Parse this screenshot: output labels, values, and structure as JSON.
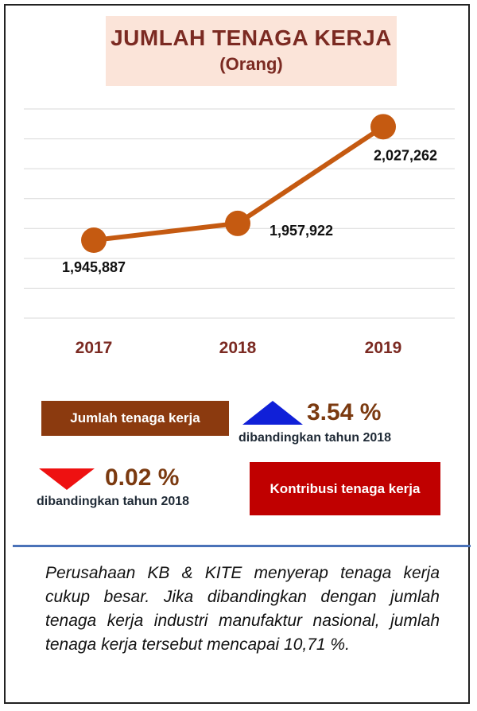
{
  "title": "JUMLAH TENAGA KERJA",
  "subtitle": "(Orang)",
  "chart_data": {
    "type": "line",
    "categories": [
      "2017",
      "2018",
      "2019"
    ],
    "values": [
      1945887,
      1957922,
      2027262
    ],
    "value_labels": [
      "1,945,887",
      "1,957,922",
      "2,027,262"
    ],
    "ylim": [
      1890000,
      2040000
    ],
    "grid": true,
    "color": "#c55a11",
    "category_color": "#7b2a22"
  },
  "stats": {
    "workforce_label": "Jumlah tenaga kerja",
    "workforce_change": "3.54 %",
    "workforce_compare": "dibandingkan tahun 2018",
    "contribution_label": "Kontribusi tenaga kerja",
    "contribution_change": "0.02 %",
    "contribution_compare": "dibandingkan tahun 2018"
  },
  "description": "Perusahaan KB & KITE menyerap tenaga kerja cukup besar. Jika dibandingkan dengan jumlah tenaga kerja industri manufaktur nasional, jumlah tenaga kerja tersebut mencapai 10,71 %."
}
